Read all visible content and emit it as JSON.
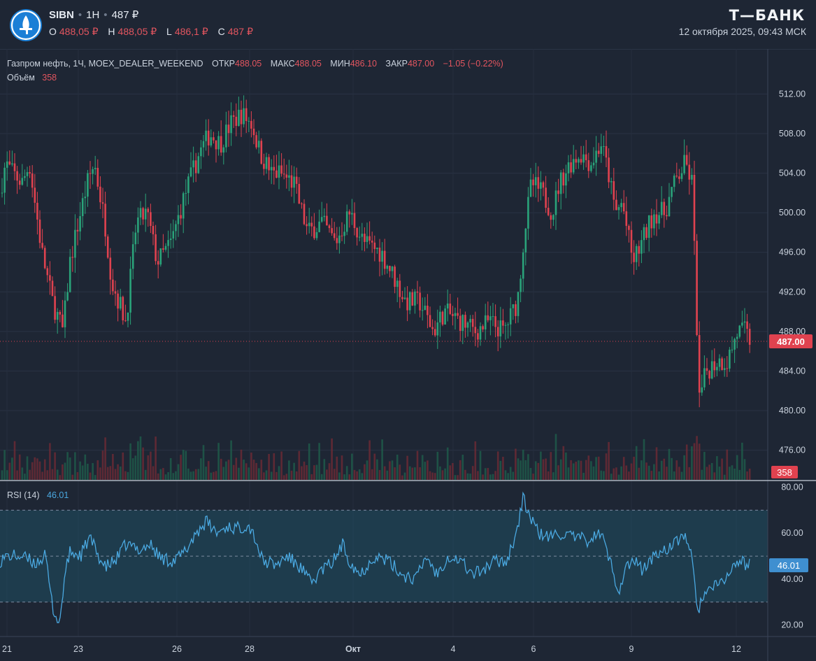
{
  "header": {
    "symbol": "SIBN",
    "interval": "1H",
    "price": "487 ₽",
    "ohlc": [
      {
        "label": "O",
        "value": "488,05 ₽"
      },
      {
        "label": "H",
        "value": "488,05 ₽"
      },
      {
        "label": "L",
        "value": "486,1 ₽"
      },
      {
        "label": "C",
        "value": "487 ₽"
      }
    ],
    "brand": "Т—БАНК",
    "datetime": "12 октября 2025, 09:43 МСК"
  },
  "legend": {
    "instrument": "Газпром нефть, 1Ч, MOEX_DEALER_WEEKEND",
    "items": [
      {
        "label": "ОТКР",
        "value": "488.05"
      },
      {
        "label": "МАКС",
        "value": "488.05"
      },
      {
        "label": "МИН",
        "value": "486.10"
      },
      {
        "label": "ЗАКР",
        "value": "487.00"
      }
    ],
    "change": "−1.05 (−0.22%)",
    "volume_label": "Объём",
    "volume_value": "358"
  },
  "rsi_legend": {
    "label": "RSI (14)",
    "value": "46.01"
  },
  "colors": {
    "up": "#2aa37a",
    "down": "#e0424f",
    "rsi": "#4aa8e0",
    "badge_price": "#e0424f",
    "badge_rsi": "#3f8fd0"
  },
  "chart_data": {
    "type": "candlestick",
    "price_ticks": [
      "512.00",
      "508.00",
      "504.00",
      "500.00",
      "496.00",
      "492.00",
      "488.00",
      "484.00",
      "480.00",
      "476.00"
    ],
    "rsi_ticks": [
      "80.00",
      "60.00",
      "40.00",
      "20.00"
    ],
    "x_ticks": [
      "21",
      "23",
      "26",
      "28",
      "Окт",
      "4",
      "6",
      "9",
      "12"
    ],
    "last_price": 487.0,
    "last_price_label": "487.00",
    "last_volume_label": "358",
    "last_rsi_label": "46.01",
    "price_range": [
      473,
      515
    ],
    "rsi_range": [
      15,
      82
    ],
    "rsi_band": [
      30,
      70
    ],
    "rsi_mid": 50,
    "price_anchors": [
      [
        0,
        502
      ],
      [
        8,
        505
      ],
      [
        18,
        504
      ],
      [
        32,
        503
      ],
      [
        42,
        505
      ],
      [
        50,
        501
      ],
      [
        60,
        496
      ],
      [
        75,
        491
      ],
      [
        90,
        488
      ],
      [
        100,
        495
      ],
      [
        115,
        500
      ],
      [
        125,
        503
      ],
      [
        135,
        505
      ],
      [
        150,
        499
      ],
      [
        160,
        493
      ],
      [
        170,
        491
      ],
      [
        180,
        489
      ],
      [
        195,
        499
      ],
      [
        210,
        500
      ],
      [
        225,
        495
      ],
      [
        245,
        497
      ],
      [
        265,
        502
      ],
      [
        285,
        506
      ],
      [
        300,
        508
      ],
      [
        315,
        507
      ],
      [
        330,
        509
      ],
      [
        345,
        510
      ],
      [
        360,
        509
      ],
      [
        372,
        506
      ],
      [
        388,
        504
      ],
      [
        400,
        504
      ],
      [
        420,
        503
      ],
      [
        440,
        498
      ],
      [
        460,
        499
      ],
      [
        480,
        497
      ],
      [
        500,
        500
      ],
      [
        520,
        497
      ],
      [
        545,
        496
      ],
      [
        560,
        494
      ],
      [
        580,
        491
      ],
      [
        600,
        491
      ],
      [
        620,
        488
      ],
      [
        635,
        490
      ],
      [
        660,
        489
      ],
      [
        680,
        488
      ],
      [
        700,
        489
      ],
      [
        720,
        488
      ],
      [
        740,
        491
      ],
      [
        750,
        498
      ],
      [
        760,
        503
      ],
      [
        775,
        502
      ],
      [
        790,
        500
      ],
      [
        800,
        503
      ],
      [
        815,
        505
      ],
      [
        830,
        506
      ],
      [
        845,
        505
      ],
      [
        860,
        507
      ],
      [
        870,
        504
      ],
      [
        880,
        500
      ],
      [
        890,
        501
      ],
      [
        905,
        495
      ],
      [
        918,
        497
      ],
      [
        935,
        500
      ],
      [
        950,
        500
      ],
      [
        965,
        503
      ],
      [
        980,
        505
      ],
      [
        990,
        503
      ],
      [
        1000,
        481
      ],
      [
        1010,
        484
      ],
      [
        1025,
        485
      ],
      [
        1040,
        485
      ],
      [
        1055,
        488
      ],
      [
        1065,
        488
      ],
      [
        1073,
        487
      ]
    ],
    "rsi_anchors": [
      [
        0,
        48
      ],
      [
        10,
        50
      ],
      [
        30,
        50
      ],
      [
        50,
        47
      ],
      [
        65,
        50
      ],
      [
        75,
        28
      ],
      [
        85,
        20
      ],
      [
        92,
        40
      ],
      [
        100,
        52
      ],
      [
        115,
        50
      ],
      [
        128,
        58
      ],
      [
        138,
        52
      ],
      [
        150,
        45
      ],
      [
        165,
        48
      ],
      [
        180,
        55
      ],
      [
        200,
        53
      ],
      [
        215,
        55
      ],
      [
        230,
        49
      ],
      [
        250,
        48
      ],
      [
        265,
        52
      ],
      [
        280,
        60
      ],
      [
        295,
        65
      ],
      [
        310,
        60
      ],
      [
        325,
        63
      ],
      [
        340,
        62
      ],
      [
        355,
        64
      ],
      [
        365,
        58
      ],
      [
        375,
        48
      ],
      [
        395,
        46
      ],
      [
        410,
        50
      ],
      [
        430,
        45
      ],
      [
        445,
        38
      ],
      [
        460,
        44
      ],
      [
        475,
        47
      ],
      [
        490,
        55
      ],
      [
        500,
        48
      ],
      [
        515,
        42
      ],
      [
        535,
        50
      ],
      [
        555,
        48
      ],
      [
        575,
        42
      ],
      [
        595,
        40
      ],
      [
        610,
        50
      ],
      [
        625,
        42
      ],
      [
        640,
        50
      ],
      [
        660,
        48
      ],
      [
        675,
        42
      ],
      [
        690,
        44
      ],
      [
        710,
        48
      ],
      [
        725,
        48
      ],
      [
        740,
        62
      ],
      [
        748,
        75
      ],
      [
        760,
        66
      ],
      [
        770,
        60
      ],
      [
        785,
        58
      ],
      [
        800,
        60
      ],
      [
        820,
        58
      ],
      [
        840,
        57
      ],
      [
        860,
        60
      ],
      [
        868,
        52
      ],
      [
        875,
        45
      ],
      [
        885,
        35
      ],
      [
        895,
        45
      ],
      [
        905,
        48
      ],
      [
        920,
        44
      ],
      [
        935,
        50
      ],
      [
        950,
        53
      ],
      [
        965,
        55
      ],
      [
        980,
        60
      ],
      [
        990,
        48
      ],
      [
        997,
        25
      ],
      [
        1005,
        33
      ],
      [
        1015,
        35
      ],
      [
        1030,
        38
      ],
      [
        1045,
        43
      ],
      [
        1055,
        48
      ],
      [
        1063,
        47
      ],
      [
        1073,
        46
      ]
    ]
  }
}
